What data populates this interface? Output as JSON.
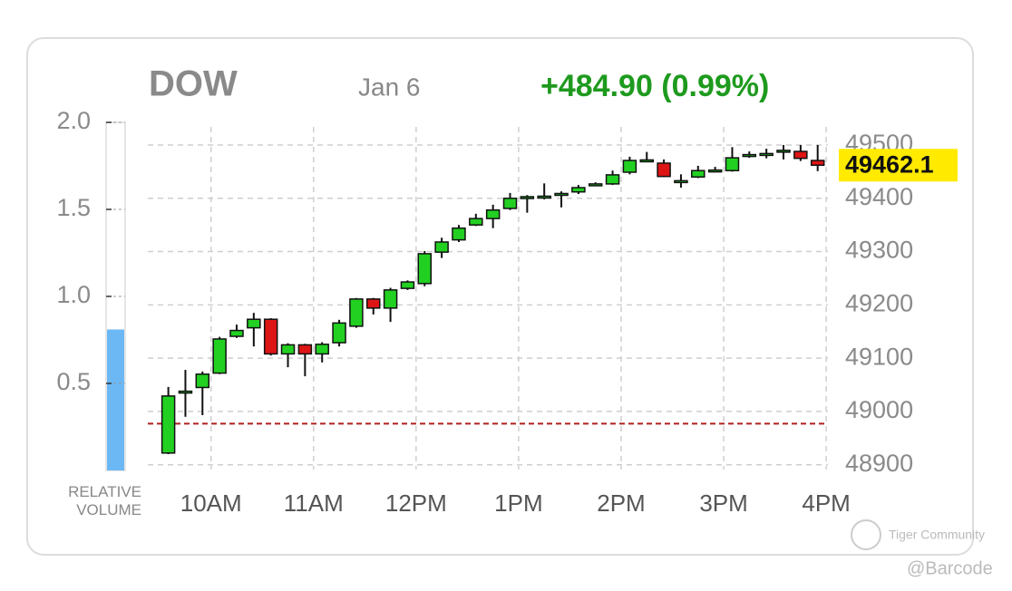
{
  "header": {
    "title": "DOW",
    "date": "Jan 6",
    "change": "+484.90 (0.99%)"
  },
  "chart_data": [
    {
      "type": "candlestick",
      "x": [
        575,
        585,
        595,
        605,
        615,
        625,
        635,
        645,
        655,
        665,
        675,
        685,
        695,
        705,
        715,
        725,
        735,
        745,
        755,
        765,
        775,
        785,
        795,
        805,
        815,
        825,
        835,
        845,
        855,
        865,
        875,
        885,
        895,
        905,
        915,
        925,
        935,
        945,
        955
      ],
      "open": [
        48922,
        49035,
        49045,
        49072,
        49141,
        49157,
        49173,
        49108,
        49125,
        49108,
        49129,
        49160,
        49211,
        49194,
        49231,
        49240,
        49299,
        49322,
        49350,
        49362,
        49381,
        49401,
        49403,
        49407,
        49412,
        49426,
        49427,
        49449,
        49471,
        49466,
        49432,
        49440,
        49452,
        49452,
        49481,
        49483,
        49489,
        49488,
        49471
      ],
      "high": [
        49046,
        49078,
        49075,
        49140,
        49163,
        49185,
        49175,
        49128,
        49127,
        49130,
        49172,
        49213,
        49213,
        49232,
        49246,
        49301,
        49326,
        49350,
        49371,
        49388,
        49410,
        49406,
        49428,
        49413,
        49425,
        49430,
        49452,
        49478,
        49487,
        49473,
        49445,
        49461,
        49459,
        49496,
        49488,
        49493,
        49500,
        49500,
        49500
      ],
      "low": [
        48920,
        48990,
        48993,
        49070,
        49138,
        49122,
        49105,
        49083,
        49066,
        49092,
        49122,
        49157,
        49182,
        49168,
        49228,
        49235,
        49288,
        49318,
        49348,
        49344,
        49378,
        49373,
        49398,
        49383,
        49408,
        49423,
        49425,
        49445,
        49469,
        49440,
        49420,
        49438,
        49449,
        49450,
        49476,
        49475,
        49473,
        49470,
        49451
      ],
      "close": [
        49029,
        49038,
        49070,
        49136,
        49152,
        49173,
        49108,
        49125,
        49108,
        49126,
        49166,
        49211,
        49194,
        49228,
        49243,
        49296,
        49318,
        49344,
        49362,
        49378,
        49400,
        49403,
        49404,
        49409,
        49420,
        49427,
        49444,
        49471,
        49472,
        49441,
        49433,
        49452,
        49453,
        49476,
        49482,
        49484,
        49490,
        49475,
        49462.1
      ],
      "up_color": "#22d022",
      "down_color": "#dd1515",
      "reference_line": 48977.2,
      "reference_color": "#b02020",
      "xlim": [
        563,
        961
      ],
      "xticks": [
        {
          "value": 600,
          "label": "10AM"
        },
        {
          "value": 660,
          "label": "11AM"
        },
        {
          "value": 720,
          "label": "12PM"
        },
        {
          "value": 780,
          "label": "1PM"
        },
        {
          "value": 840,
          "label": "2PM"
        },
        {
          "value": 900,
          "label": "3PM"
        },
        {
          "value": 960,
          "label": "4PM"
        }
      ],
      "ylim": [
        48891,
        49534
      ],
      "yticks": [
        48900,
        49000,
        49100,
        49200,
        49300,
        49400,
        49500
      ],
      "grid": true
    },
    {
      "type": "bar",
      "xlabel": "RELATIVE VOLUME",
      "values": [
        0.81
      ],
      "color": "#6cb8f5",
      "ylim": [
        0,
        2.0
      ],
      "yticks": [
        0.5,
        {
          "value": 1.0,
          "label": "1.0"
        },
        1.5,
        {
          "value": 2.0,
          "label": "2.0"
        }
      ]
    }
  ],
  "watermark": {
    "brand": "Tiger Community",
    "user": "@Barcode"
  }
}
